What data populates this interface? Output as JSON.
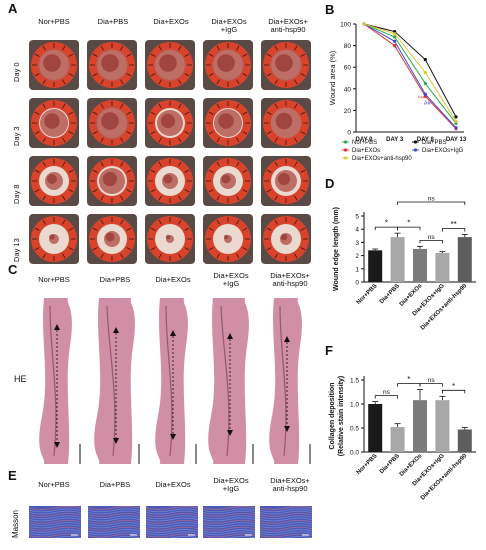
{
  "panel_labels": {
    "A": "A",
    "B": "B",
    "C": "C",
    "D": "D",
    "E": "E",
    "F": "F"
  },
  "groups": [
    "Nor+PBS",
    "Dia+PBS",
    "Dia+EXOs",
    "Dia+EXOs\n+IgG",
    "Dia+EXOs+\nanti-hsp90"
  ],
  "days": [
    "Day 0",
    "Day 3",
    "Day 8",
    "Day 13"
  ],
  "he_label": "HE",
  "masson_label": "Masson",
  "colors": {
    "photo_red": "#d8432c",
    "skin_pink": "#c97b97",
    "masson_blue": "#4a5bb5",
    "nor": "#2fa84f",
    "dia": "#111111",
    "exo": "#e0312f",
    "igg": "#3f4bd1",
    "hsp": "#d9c93c"
  },
  "chart_data": [
    {
      "id": "B",
      "type": "line",
      "ylabel": "Wound area (%)",
      "categories": [
        "DAY 0",
        "DAY 3",
        "DAY 8",
        "DAY 13"
      ],
      "ylim": [
        0,
        100
      ],
      "yticks": [
        0,
        20,
        40,
        60,
        80,
        100
      ],
      "series": [
        {
          "name": "Nor+PBS",
          "color": "#2fa84f",
          "values": [
            100,
            88,
            45,
            8
          ]
        },
        {
          "name": "Dia+PBS",
          "color": "#111111",
          "values": [
            100,
            93,
            67,
            14
          ]
        },
        {
          "name": "Dia+EXOs",
          "color": "#e0312f",
          "values": [
            100,
            80,
            33,
            3
          ]
        },
        {
          "name": "Dia+EXOs+IgG",
          "color": "#3f4bd1",
          "values": [
            100,
            84,
            35,
            4
          ]
        },
        {
          "name": "Dia+EXOs+anti-hsp90",
          "color": "#d9c93c",
          "values": [
            100,
            91,
            55,
            10
          ]
        }
      ],
      "annotations": [
        "*",
        "##",
        "****"
      ],
      "legend": "bottom"
    },
    {
      "id": "D",
      "type": "bar",
      "ylabel": "Wound edge length (mm)",
      "categories": [
        "Nor+PBS",
        "Dia+PBS",
        "Dia+EXOs",
        "Dia+EXOs+IgG",
        "Dia+EXOs+anti-hsp90"
      ],
      "values": [
        2.4,
        3.4,
        2.5,
        2.2,
        3.4
      ],
      "errors": [
        0.1,
        0.3,
        0.2,
        0.1,
        0.2
      ],
      "colors": [
        "#1a1a1a",
        "#a8a8a8",
        "#7c7c7c",
        "#a8a8a8",
        "#5e5e5e"
      ],
      "ylim": [
        0,
        5
      ],
      "yticks": [
        0,
        1,
        2,
        3,
        4,
        5
      ],
      "significance": [
        {
          "from": 0,
          "to": 1,
          "label": "*"
        },
        {
          "from": 1,
          "to": 2,
          "label": "*"
        },
        {
          "from": 2,
          "to": 3,
          "label": "ns"
        },
        {
          "from": 3,
          "to": 4,
          "label": "**"
        },
        {
          "from": 1,
          "to": 4,
          "label": "ns"
        }
      ]
    },
    {
      "id": "F",
      "type": "bar",
      "ylabel": "Collagen deposition",
      "ylabel2": "(Relative stain intensity)",
      "categories": [
        "Nor+PBS",
        "Dia+PBS",
        "Dia+EXOs",
        "Dia+EXOs+IgG",
        "Dia+EXOs+anti-hsp90"
      ],
      "values": [
        1.0,
        0.52,
        1.08,
        1.08,
        0.47
      ],
      "errors": [
        0.05,
        0.07,
        0.22,
        0.08,
        0.04
      ],
      "colors": [
        "#1a1a1a",
        "#a8a8a8",
        "#7c7c7c",
        "#a8a8a8",
        "#5e5e5e"
      ],
      "ylim": [
        0,
        1.5
      ],
      "yticks": [
        0.0,
        0.5,
        1.0,
        1.5
      ],
      "significance": [
        {
          "from": 0,
          "to": 1,
          "label": "ns"
        },
        {
          "from": 1,
          "to": 2,
          "label": "*"
        },
        {
          "from": 2,
          "to": 3,
          "label": "ns"
        },
        {
          "from": 3,
          "to": 4,
          "label": "*"
        }
      ]
    }
  ]
}
